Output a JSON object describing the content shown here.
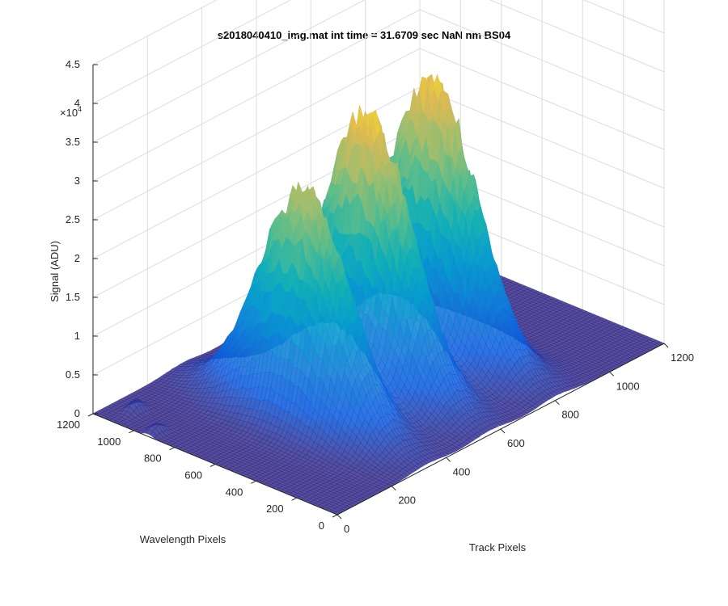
{
  "chart_data": {
    "type": "surface",
    "title": "s2018040410_img.mat int time = 31.6709 sec  NaN nm BS04",
    "xlabel": "Track Pixels",
    "ylabel": "Wavelength Pixels",
    "zlabel": "Signal (ADU)",
    "z_exponent_label": "×10",
    "z_exponent_power": "4",
    "xlim": [
      0,
      1200
    ],
    "ylim": [
      0,
      1200
    ],
    "zlim": [
      0,
      45000
    ],
    "x_ticks": [
      "0",
      "200",
      "400",
      "600",
      "800",
      "1000",
      "1200"
    ],
    "y_ticks": [
      "0",
      "200",
      "400",
      "600",
      "800",
      "1000",
      "1200"
    ],
    "z_ticks": [
      "0",
      "0.5",
      "1",
      "1.5",
      "2",
      "2.5",
      "3",
      "3.5",
      "4",
      "4.5"
    ],
    "grid": true,
    "colormap": "parula",
    "colors": {
      "low": "#352a87",
      "mid": "#21a1cf",
      "high": "#f9d42c",
      "grid": "#dcdcdc",
      "axis": "#262626"
    },
    "peaks": [
      {
        "track_center": 330,
        "wavelength_center": 600,
        "track_width": 60,
        "wavelength_width": 210,
        "peak_signal": 31000
      },
      {
        "track_center": 560,
        "wavelength_center": 600,
        "track_width": 60,
        "wavelength_width": 210,
        "peak_signal": 37000
      },
      {
        "track_center": 800,
        "wavelength_center": 600,
        "track_width": 60,
        "wavelength_width": 210,
        "peak_signal": 36500
      }
    ],
    "minor_bumps": [
      {
        "track_center": 30,
        "wavelength_center": 930,
        "peak_signal": 1100
      },
      {
        "track_center": 80,
        "wavelength_center": 1100,
        "peak_signal": 1500
      }
    ]
  }
}
